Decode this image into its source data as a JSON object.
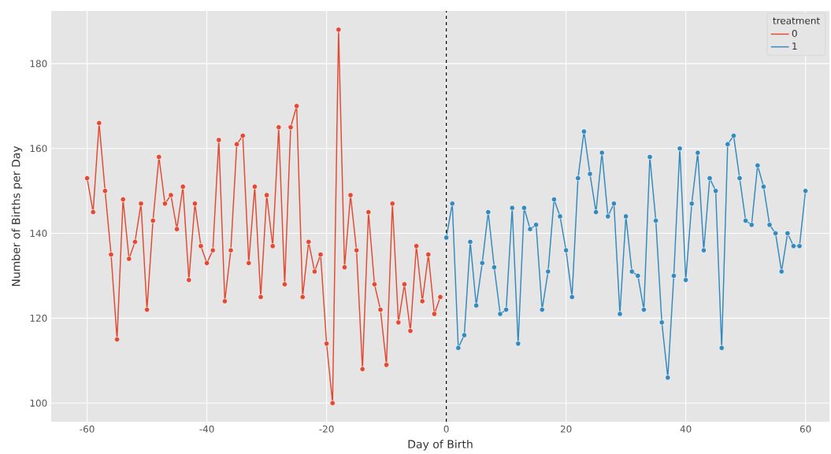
{
  "chart_data": {
    "type": "line",
    "xlabel": "Day of Birth",
    "ylabel": "Number of Births per Day",
    "legend_title": "treatment",
    "xlim": [
      -66,
      64
    ],
    "ylim": [
      95.6,
      192.4
    ],
    "xticks": [
      -60,
      -40,
      -20,
      0,
      20,
      40,
      60
    ],
    "yticks": [
      100,
      120,
      140,
      160,
      180
    ],
    "grid": true,
    "legend": "top right",
    "marker": "circle",
    "line_style": "solid",
    "ref_lines": [
      {
        "axis": "x",
        "value": 0,
        "color": "#000000",
        "line_style": "dashed"
      }
    ],
    "series": [
      {
        "name": "0",
        "color": "#e24a33",
        "x": [
          -60,
          -59,
          -58,
          -57,
          -56,
          -55,
          -54,
          -53,
          -52,
          -51,
          -50,
          -49,
          -48,
          -47,
          -46,
          -45,
          -44,
          -43,
          -42,
          -41,
          -40,
          -39,
          -38,
          -37,
          -36,
          -35,
          -34,
          -33,
          -32,
          -31,
          -30,
          -29,
          -28,
          -27,
          -26,
          -25,
          -24,
          -23,
          -22,
          -21,
          -20,
          -19,
          -18,
          -17,
          -16,
          -15,
          -14,
          -13,
          -12,
          -11,
          -10,
          -9,
          -8,
          -7,
          -6,
          -5,
          -4,
          -3,
          -2,
          -1
        ],
        "values": [
          153,
          145,
          166,
          150,
          135,
          115,
          148,
          134,
          138,
          147,
          122,
          143,
          158,
          147,
          149,
          141,
          151,
          129,
          147,
          137,
          133,
          136,
          162,
          124,
          136,
          161,
          163,
          133,
          151,
          125,
          149,
          137,
          165,
          128,
          165,
          170,
          125,
          138,
          131,
          135,
          114,
          100,
          188,
          132,
          149,
          136,
          108,
          145,
          128,
          122,
          109,
          147,
          119,
          128,
          117,
          137,
          124,
          135,
          121,
          125
        ]
      },
      {
        "name": "1",
        "color": "#348abd",
        "x": [
          0,
          1,
          2,
          3,
          4,
          5,
          6,
          7,
          8,
          9,
          10,
          11,
          12,
          13,
          14,
          15,
          16,
          17,
          18,
          19,
          20,
          21,
          22,
          23,
          24,
          25,
          26,
          27,
          28,
          29,
          30,
          31,
          32,
          33,
          34,
          35,
          36,
          37,
          38,
          39,
          40,
          41,
          42,
          43,
          44,
          45,
          46,
          47,
          48,
          49,
          50,
          51,
          52,
          53,
          54,
          55,
          56,
          57,
          58,
          59,
          60
        ],
        "values": [
          139,
          147,
          113,
          116,
          138,
          123,
          133,
          145,
          132,
          121,
          122,
          146,
          114,
          146,
          141,
          142,
          122,
          131,
          148,
          144,
          136,
          125,
          153,
          164,
          154,
          145,
          159,
          144,
          147,
          121,
          144,
          131,
          130,
          122,
          158,
          143,
          119,
          106,
          130,
          160,
          129,
          147,
          159,
          136,
          153,
          150,
          113,
          161,
          163,
          153,
          143,
          142,
          156,
          151,
          142,
          140,
          131,
          140,
          137,
          137,
          150
        ]
      }
    ]
  }
}
